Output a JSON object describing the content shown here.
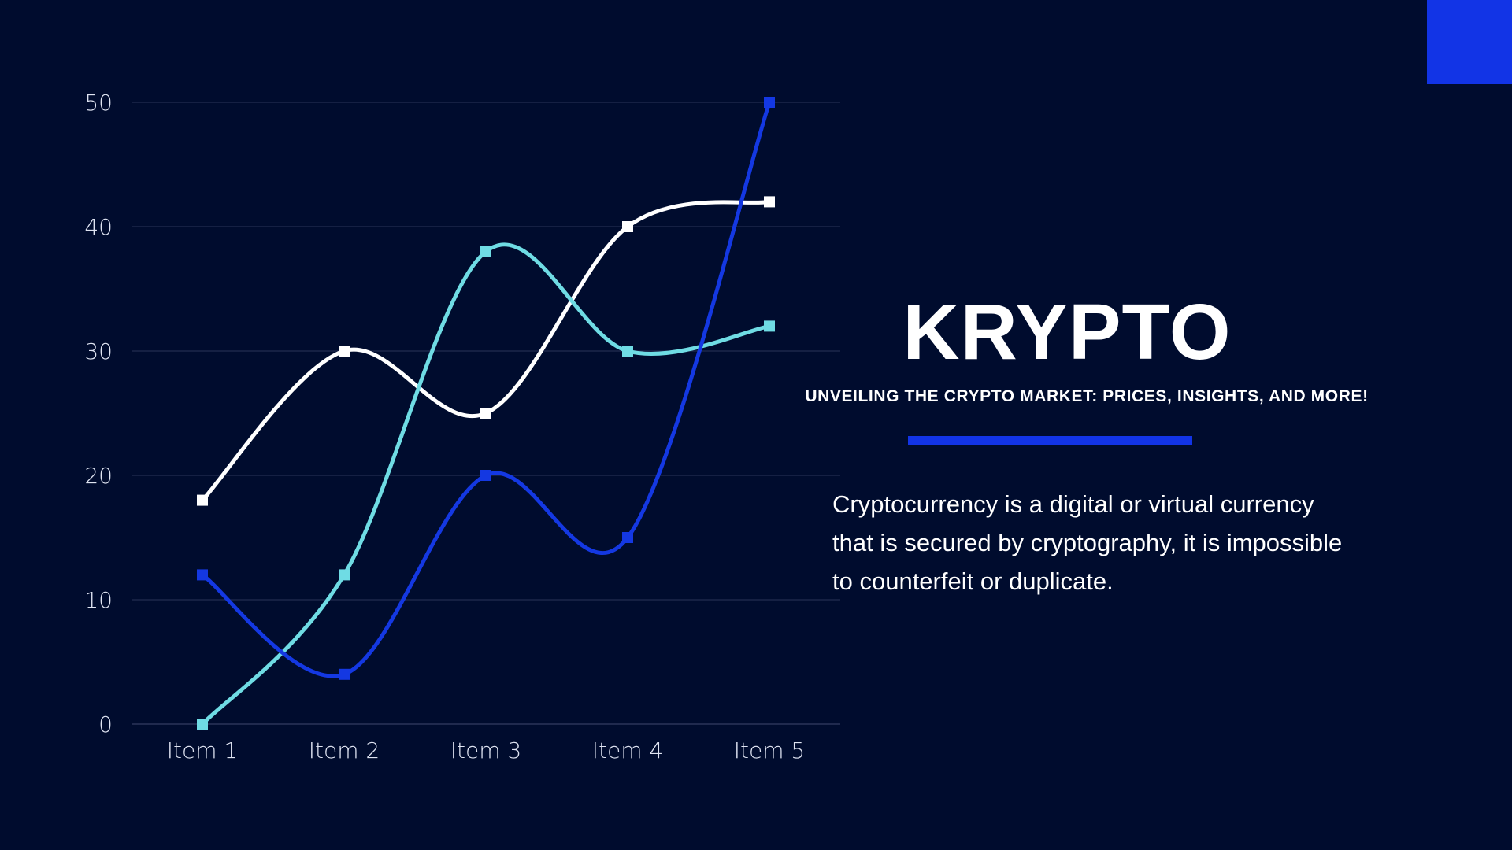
{
  "colors": {
    "background": "#000c2e",
    "accent": "#1234e6",
    "gridline": "#2a3458",
    "text": "#ffffff"
  },
  "title": "KRYPTO",
  "subtitle": "UNVEILING THE CRYPTO MARKET: PRICES, INSIGHTS, AND MORE!",
  "description": "Cryptocurrency is a digital or virtual currency that is secured by cryptography, it is impossible to counterfeit or duplicate.",
  "chart_data": {
    "type": "line",
    "categories": [
      "Item 1",
      "Item 2",
      "Item 3",
      "Item 4",
      "Item 5"
    ],
    "ylim": [
      0,
      50
    ],
    "yticks": [
      0,
      10,
      20,
      30,
      40,
      50
    ],
    "grid": true,
    "smooth": true,
    "marker": "square",
    "series": [
      {
        "color": "#ffffff",
        "values": [
          18,
          30,
          25,
          40,
          42
        ]
      },
      {
        "color": "#6fdce4",
        "values": [
          0,
          12,
          38,
          30,
          32
        ]
      },
      {
        "color": "#1438e2",
        "values": [
          12,
          4,
          20,
          15,
          50
        ]
      }
    ]
  }
}
